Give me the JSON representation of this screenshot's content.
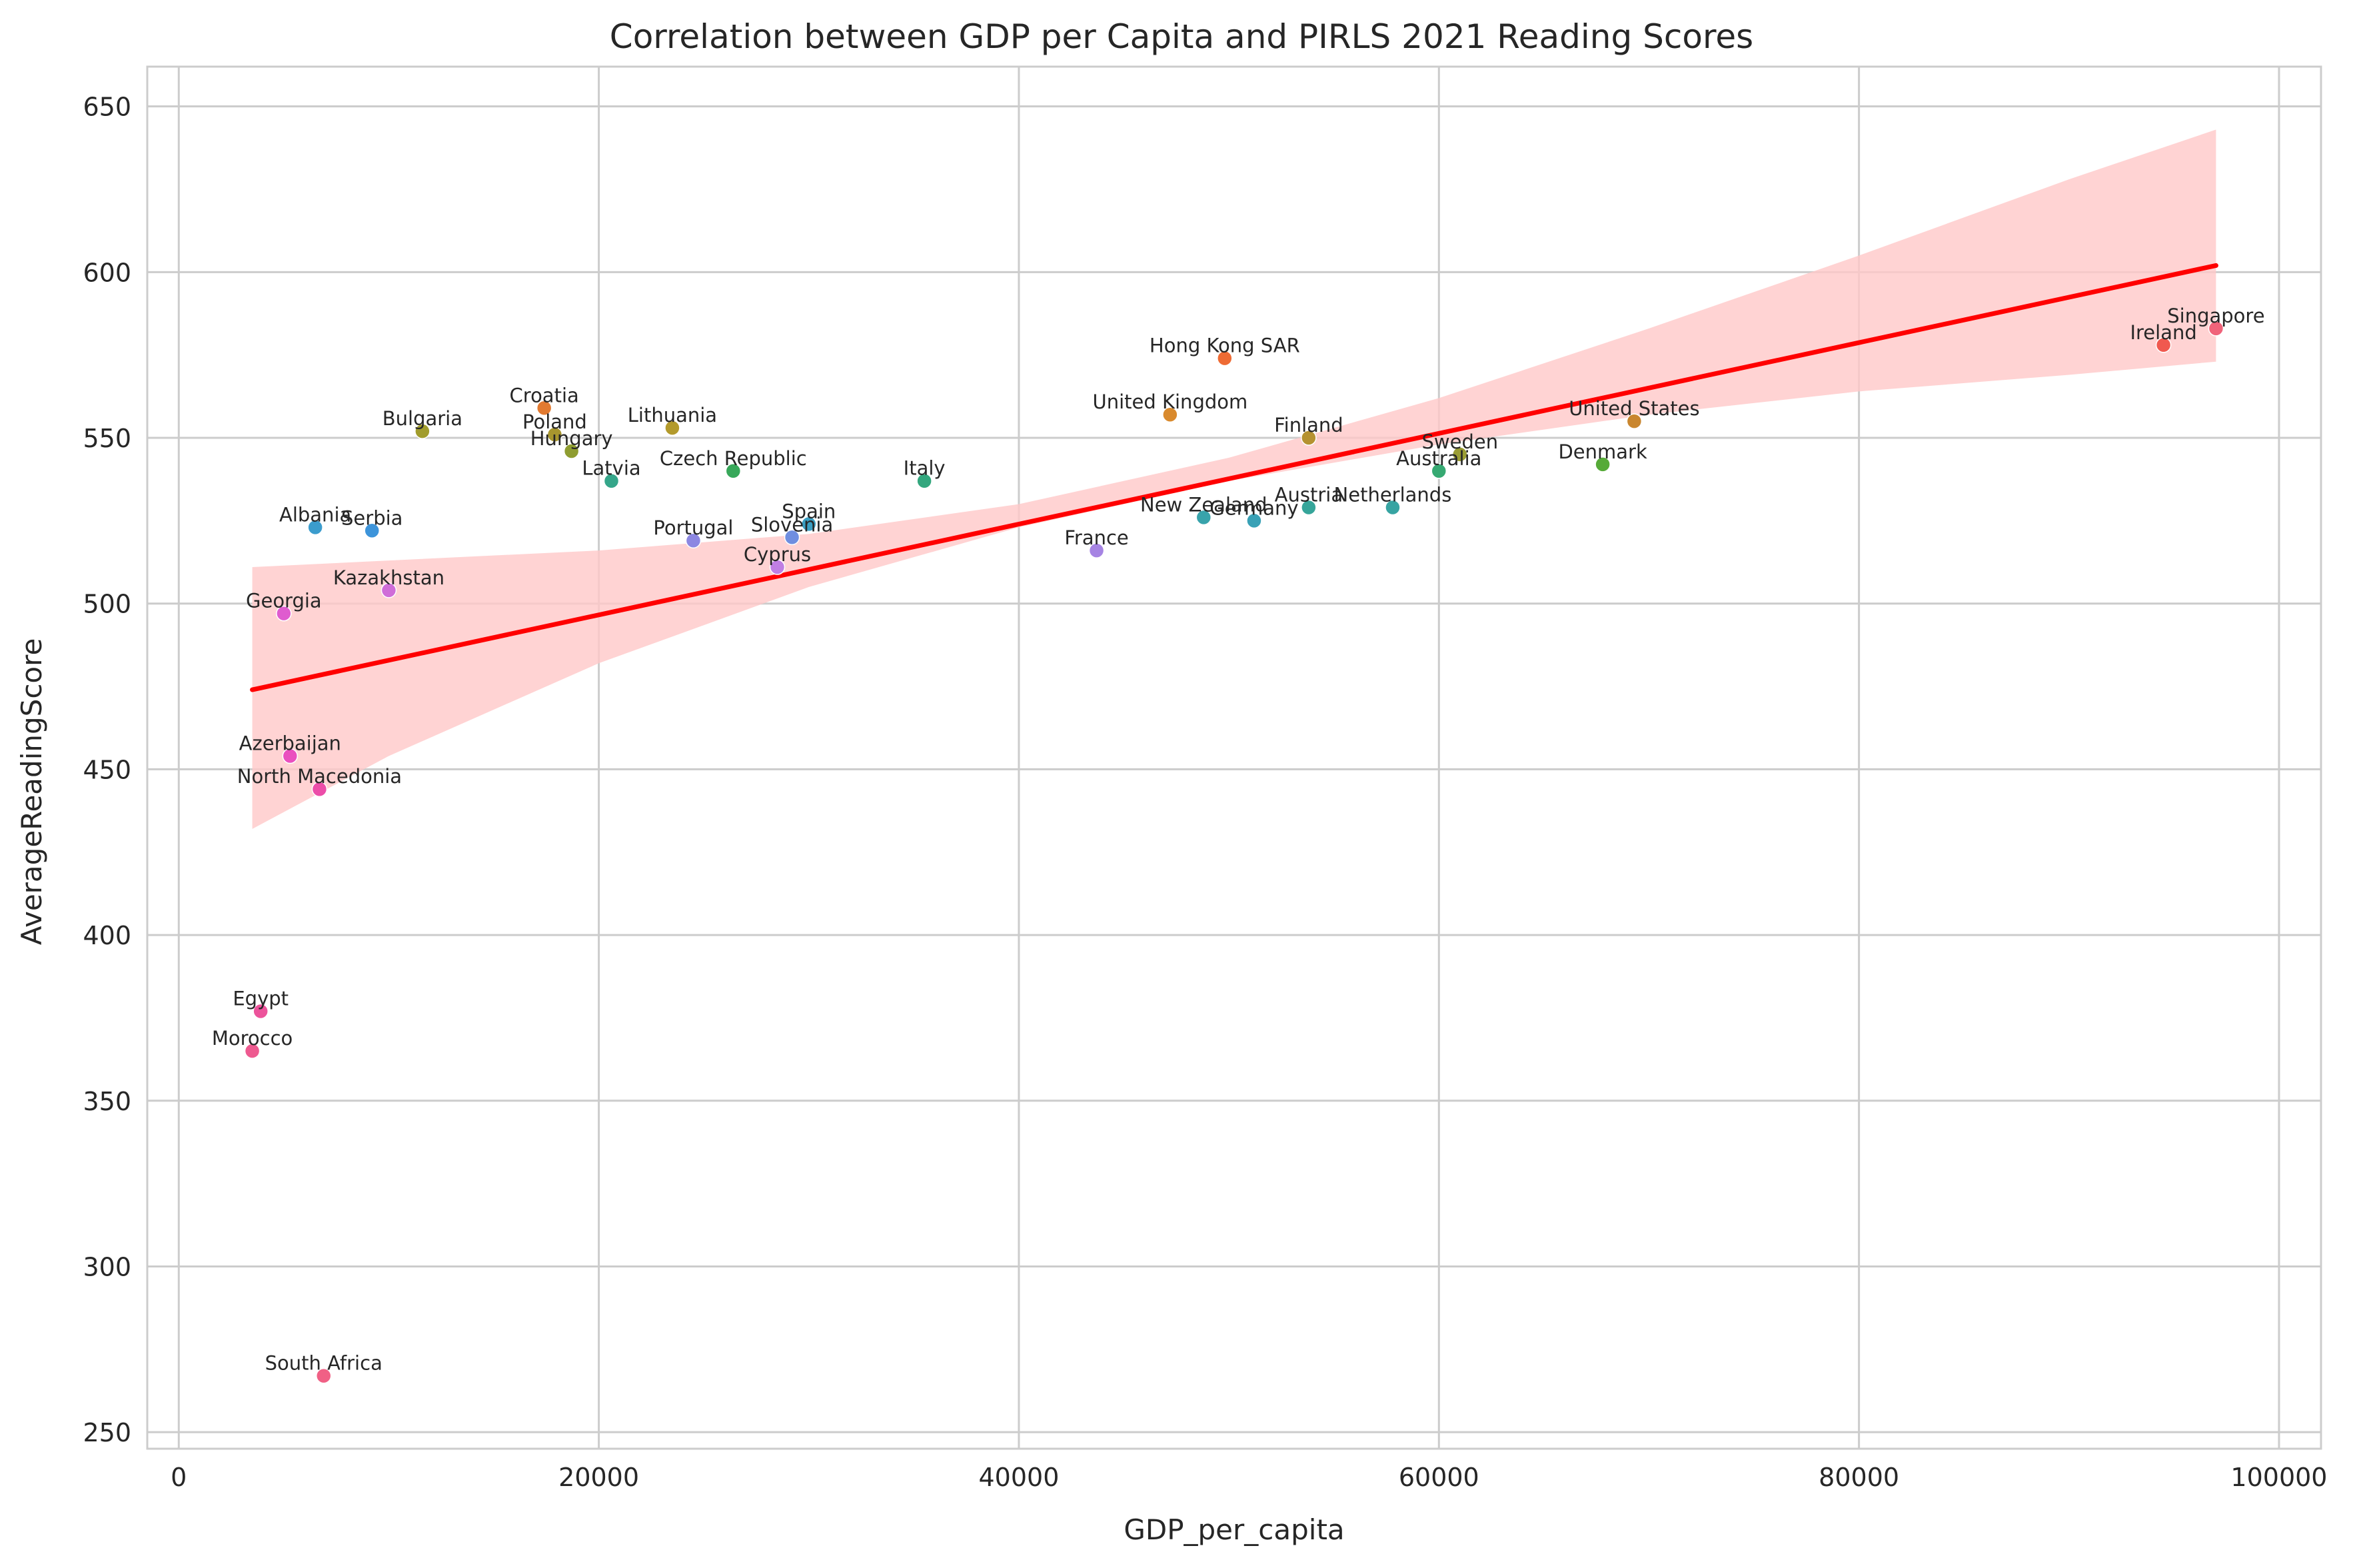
{
  "chart_data": {
    "type": "scatter",
    "title": "Correlation between GDP per Capita and PIRLS 2021 Reading Scores",
    "xlabel": "GDP_per_capita",
    "ylabel": "AverageReadingScore",
    "xlim": [
      -1500,
      102000
    ],
    "ylim": [
      245,
      662
    ],
    "xticks": [
      0,
      20000,
      40000,
      60000,
      80000,
      100000
    ],
    "yticks": [
      250,
      300,
      350,
      400,
      450,
      500,
      550,
      600,
      650
    ],
    "grid": true,
    "legend": "none",
    "points": [
      {
        "country": "Singapore",
        "x": 97000,
        "y": 583,
        "color": "#f0637a"
      },
      {
        "country": "Ireland",
        "x": 94500,
        "y": 578,
        "color": "#f0594f"
      },
      {
        "country": "Hong Kong SAR",
        "x": 49800,
        "y": 574,
        "color": "#ee6b34"
      },
      {
        "country": "Croatia",
        "x": 17400,
        "y": 559,
        "color": "#e27a30"
      },
      {
        "country": "United Kingdom",
        "x": 47200,
        "y": 557,
        "color": "#d98a2d"
      },
      {
        "country": "United States",
        "x": 69300,
        "y": 555,
        "color": "#c9862f"
      },
      {
        "country": "Lithuania",
        "x": 23500,
        "y": 553,
        "color": "#b39a2c"
      },
      {
        "country": "Bulgaria",
        "x": 11600,
        "y": 552,
        "color": "#a19c2c"
      },
      {
        "country": "Poland",
        "x": 17900,
        "y": 551,
        "color": "#a8962e"
      },
      {
        "country": "Finland",
        "x": 53800,
        "y": 550,
        "color": "#b59231"
      },
      {
        "country": "Hungary",
        "x": 18700,
        "y": 546,
        "color": "#8f9d31"
      },
      {
        "country": "Sweden",
        "x": 61000,
        "y": 545,
        "color": "#9a9d34"
      },
      {
        "country": "Denmark",
        "x": 67800,
        "y": 542,
        "color": "#56aa38"
      },
      {
        "country": "Czech Republic",
        "x": 26400,
        "y": 540,
        "color": "#38a85a"
      },
      {
        "country": "Australia",
        "x": 60000,
        "y": 540,
        "color": "#36a972"
      },
      {
        "country": "Italy",
        "x": 35500,
        "y": 537,
        "color": "#34a77e"
      },
      {
        "country": "Latvia",
        "x": 20600,
        "y": 537,
        "color": "#35a68a"
      },
      {
        "country": "Austria",
        "x": 53800,
        "y": 529,
        "color": "#36a59a"
      },
      {
        "country": "Netherlands",
        "x": 57800,
        "y": 529,
        "color": "#37a4a2"
      },
      {
        "country": "New Zealand",
        "x": 48800,
        "y": 526,
        "color": "#38a3ab"
      },
      {
        "country": "Germany",
        "x": 51200,
        "y": 525,
        "color": "#39a1b6"
      },
      {
        "country": "Spain",
        "x": 30000,
        "y": 524,
        "color": "#3a9fc3"
      },
      {
        "country": "Albania",
        "x": 6500,
        "y": 523,
        "color": "#3b9ccd"
      },
      {
        "country": "Serbia",
        "x": 9200,
        "y": 522,
        "color": "#3d94da"
      },
      {
        "country": "Slovenia",
        "x": 29200,
        "y": 520,
        "color": "#6f8ee0"
      },
      {
        "country": "Portugal",
        "x": 24500,
        "y": 519,
        "color": "#8c87e2"
      },
      {
        "country": "France",
        "x": 43700,
        "y": 516,
        "color": "#a684e3"
      },
      {
        "country": "Cyprus",
        "x": 28500,
        "y": 511,
        "color": "#c07ee3"
      },
      {
        "country": "Kazakhstan",
        "x": 10000,
        "y": 504,
        "color": "#d06dd8"
      },
      {
        "country": "Georgia",
        "x": 5000,
        "y": 497,
        "color": "#df5ccf"
      },
      {
        "country": "Azerbaijan",
        "x": 5300,
        "y": 454,
        "color": "#ea4fbf"
      },
      {
        "country": "North Macedonia",
        "x": 6700,
        "y": 444,
        "color": "#ec4da9"
      },
      {
        "country": "Egypt",
        "x": 3900,
        "y": 377,
        "color": "#ec539b"
      },
      {
        "country": "Morocco",
        "x": 3500,
        "y": 365,
        "color": "#ee5a90"
      },
      {
        "country": "South Africa",
        "x": 6900,
        "y": 267,
        "color": "#f06085"
      }
    ],
    "regression": {
      "x": [
        3500,
        97000
      ],
      "y": [
        474,
        602
      ],
      "color": "#ff0000"
    },
    "confidence_band": {
      "x": [
        3500,
        10000,
        20000,
        30000,
        40000,
        50000,
        60000,
        70000,
        80000,
        90000,
        97000
      ],
      "lower": [
        432,
        454,
        482,
        505,
        523,
        537,
        548,
        557,
        564,
        569,
        573
      ],
      "upper": [
        511,
        513,
        516,
        521,
        530,
        544,
        562,
        583,
        605,
        628,
        643
      ],
      "color": "#ffc8c8"
    }
  }
}
